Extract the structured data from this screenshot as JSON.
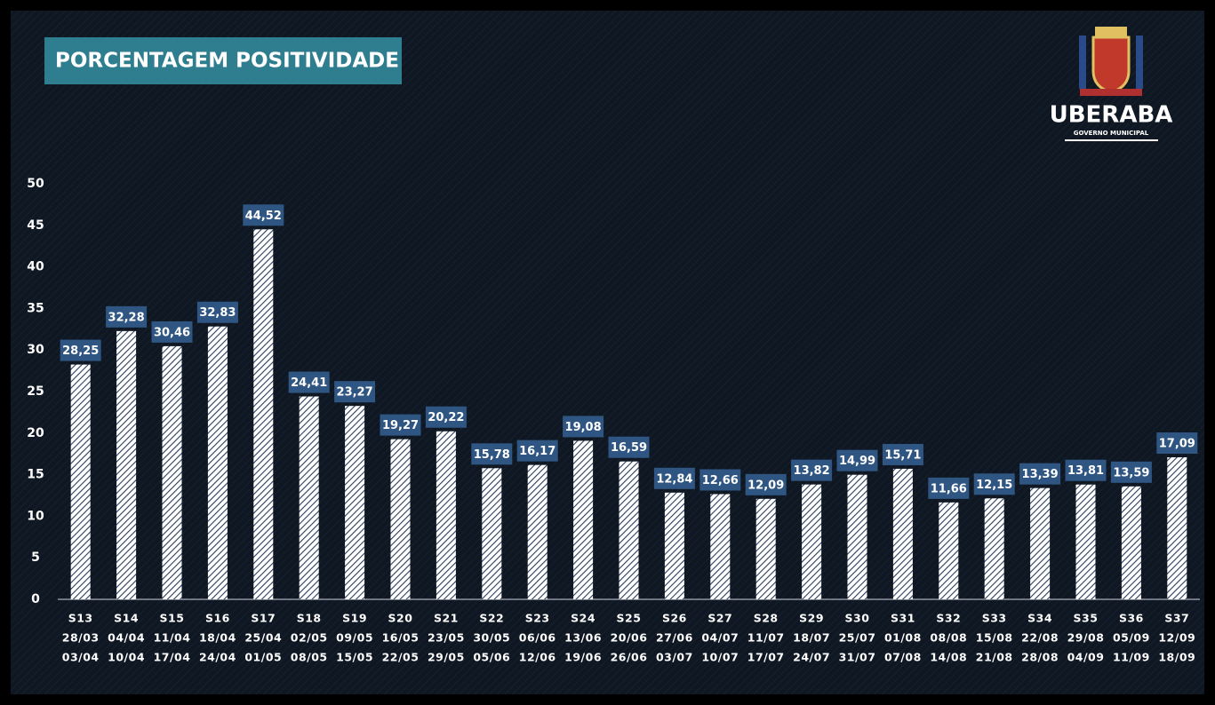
{
  "chart_data": {
    "type": "bar",
    "title": "PORCENTAGEM POSITIVIDADE",
    "logo_text": "UBERABA",
    "logo_subtext": "GOVERNO MUNICIPAL",
    "categories": [
      [
        "S13",
        "28/03",
        "03/04"
      ],
      [
        "S14",
        "04/04",
        "10/04"
      ],
      [
        "S15",
        "11/04",
        "17/04"
      ],
      [
        "S16",
        "18/04",
        "24/04"
      ],
      [
        "S17",
        "25/04",
        "01/05"
      ],
      [
        "S18",
        "02/05",
        "08/05"
      ],
      [
        "S19",
        "09/05",
        "15/05"
      ],
      [
        "S20",
        "16/05",
        "22/05"
      ],
      [
        "S21",
        "23/05",
        "29/05"
      ],
      [
        "S22",
        "30/05",
        "05/06"
      ],
      [
        "S23",
        "06/06",
        "12/06"
      ],
      [
        "S24",
        "13/06",
        "19/06"
      ],
      [
        "S25",
        "20/06",
        "26/06"
      ],
      [
        "S26",
        "27/06",
        "03/07"
      ],
      [
        "S27",
        "04/07",
        "10/07"
      ],
      [
        "S28",
        "11/07",
        "17/07"
      ],
      [
        "S29",
        "18/07",
        "24/07"
      ],
      [
        "S30",
        "25/07",
        "31/07"
      ],
      [
        "S31",
        "01/08",
        "07/08"
      ],
      [
        "S32",
        "08/08",
        "14/08"
      ],
      [
        "S33",
        "15/08",
        "21/08"
      ],
      [
        "S34",
        "22/08",
        "28/08"
      ],
      [
        "S35",
        "29/08",
        "04/09"
      ],
      [
        "S36",
        "05/09",
        "11/09"
      ],
      [
        "S37",
        "12/09",
        "18/09"
      ]
    ],
    "values": [
      28.25,
      32.28,
      30.46,
      32.83,
      44.52,
      24.41,
      23.27,
      19.27,
      20.22,
      15.78,
      16.17,
      19.08,
      16.59,
      12.84,
      12.66,
      12.09,
      13.82,
      14.99,
      15.71,
      11.66,
      12.15,
      13.39,
      13.81,
      13.59,
      17.09
    ],
    "value_labels": [
      "28,25",
      "32,28",
      "30,46",
      "32,83",
      "44,52",
      "24,41",
      "23,27",
      "19,27",
      "20,22",
      "15,78",
      "16,17",
      "19,08",
      "16,59",
      "12,84",
      "12,66",
      "12,09",
      "13,82",
      "14,99",
      "15,71",
      "11,66",
      "12,15",
      "13,39",
      "13,81",
      "13,59",
      "17,09"
    ],
    "color": "#ffffff",
    "hatch_color": "#2b3d5c",
    "label_color": "#2f5682",
    "ylim": [
      0,
      50
    ],
    "yticks": [
      0,
      5,
      10,
      15,
      20,
      25,
      30,
      35,
      40,
      45,
      50
    ]
  }
}
